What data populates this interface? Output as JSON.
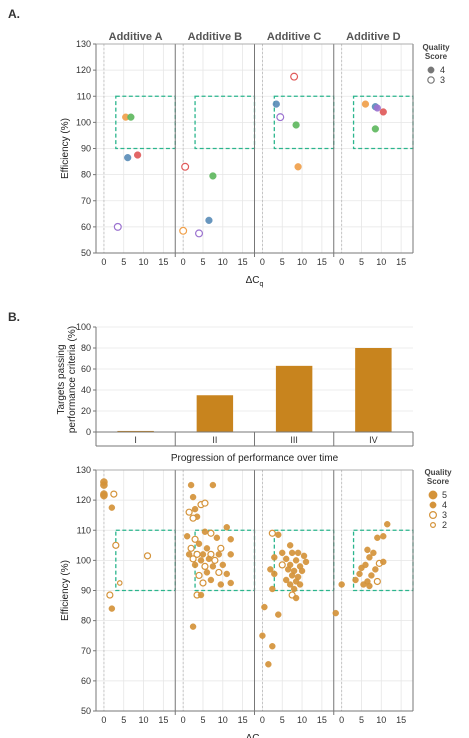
{
  "panel_a_label": "A.",
  "panel_b_label": "B.",
  "chart_data": [
    {
      "type": "scatter",
      "panel": "A",
      "facets": [
        "Additive A",
        "Additive B",
        "Additive C",
        "Additive D"
      ],
      "xlabel_main": "ΔC",
      "xlabel_sub": "q",
      "ylabel": "Efficiency (%)",
      "x_ticks": [
        0,
        5,
        10,
        15
      ],
      "xlim": [
        -2,
        18
      ],
      "y_ticks": [
        50,
        60,
        70,
        80,
        90,
        100,
        110,
        120,
        130
      ],
      "ylim": [
        50,
        130
      ],
      "target_box": {
        "x": [
          3,
          18
        ],
        "y": [
          90,
          110
        ]
      },
      "legend": {
        "title_line1": "Quality",
        "title_line2": "Score",
        "items": [
          {
            "label": "4",
            "filled": true
          },
          {
            "label": "3",
            "filled": false
          }
        ]
      },
      "points": [
        {
          "facet": 0,
          "x": 5.5,
          "y": 102,
          "q": 4,
          "color": "#F0A04B"
        },
        {
          "facet": 0,
          "x": 6.8,
          "y": 102,
          "q": 4,
          "color": "#5FB860"
        },
        {
          "facet": 0,
          "x": 6.0,
          "y": 86.5,
          "q": 4,
          "color": "#5B8DB8"
        },
        {
          "facet": 0,
          "x": 8.5,
          "y": 87.5,
          "q": 4,
          "color": "#E05A5A"
        },
        {
          "facet": 0,
          "x": 3.5,
          "y": 60,
          "q": 3,
          "color": "#9B72CF"
        },
        {
          "facet": 1,
          "x": 0.5,
          "y": 83,
          "q": 3,
          "color": "#E05A5A"
        },
        {
          "facet": 1,
          "x": 7.5,
          "y": 79.5,
          "q": 4,
          "color": "#5FB860"
        },
        {
          "facet": 1,
          "x": 6.5,
          "y": 62.5,
          "q": 4,
          "color": "#5B8DB8"
        },
        {
          "facet": 1,
          "x": 0.0,
          "y": 58.5,
          "q": 3,
          "color": "#F0A04B"
        },
        {
          "facet": 1,
          "x": 4.0,
          "y": 57.5,
          "q": 3,
          "color": "#9B72CF"
        },
        {
          "facet": 2,
          "x": 8.0,
          "y": 117.5,
          "q": 3,
          "color": "#E05A5A"
        },
        {
          "facet": 2,
          "x": 3.5,
          "y": 107,
          "q": 4,
          "color": "#5B8DB8"
        },
        {
          "facet": 2,
          "x": 4.5,
          "y": 102,
          "q": 3,
          "color": "#9B72CF"
        },
        {
          "facet": 2,
          "x": 8.5,
          "y": 99,
          "q": 4,
          "color": "#5FB860"
        },
        {
          "facet": 2,
          "x": 9.0,
          "y": 83,
          "q": 4,
          "color": "#F0A04B"
        },
        {
          "facet": 3,
          "x": 6.0,
          "y": 107,
          "q": 4,
          "color": "#F0A04B"
        },
        {
          "facet": 3,
          "x": 8.5,
          "y": 106,
          "q": 4,
          "color": "#5B8DB8"
        },
        {
          "facet": 3,
          "x": 9.0,
          "y": 105.5,
          "q": 4,
          "color": "#9B72CF"
        },
        {
          "facet": 3,
          "x": 10.5,
          "y": 104,
          "q": 4,
          "color": "#E05A5A"
        },
        {
          "facet": 3,
          "x": 8.5,
          "y": 97.5,
          "q": 4,
          "color": "#5FB860"
        }
      ]
    },
    {
      "type": "bar",
      "panel": "B-top",
      "categories": [
        "I",
        "II",
        "III",
        "IV"
      ],
      "values": [
        1,
        35,
        63,
        80
      ],
      "ylabel_line1": "Targets passing",
      "ylabel_line2": "performance criteria (%)",
      "xlabel": "Progression of performance over time",
      "y_ticks": [
        0,
        20,
        40,
        60,
        80,
        100
      ],
      "ylim": [
        0,
        100
      ],
      "bar_color": "#C8841E"
    },
    {
      "type": "scatter",
      "panel": "B-bottom",
      "facets": [
        "I",
        "II",
        "III",
        "IV"
      ],
      "xlabel_main": "ΔC",
      "xlabel_sub": "q",
      "ylabel": "Efficiency (%)",
      "x_ticks": [
        0,
        5,
        10,
        15
      ],
      "xlim": [
        -2,
        18
      ],
      "y_ticks": [
        50,
        60,
        70,
        80,
        90,
        100,
        110,
        120,
        130
      ],
      "ylim": [
        50,
        130
      ],
      "target_box": {
        "x": [
          3,
          18
        ],
        "y": [
          90,
          110
        ]
      },
      "point_color": "#D4933A",
      "legend": {
        "title_line1": "Quality",
        "title_line2": "Score",
        "items": [
          {
            "label": "5",
            "filled": true,
            "r": 4.2
          },
          {
            "label": "4",
            "filled": true,
            "r": 3.2
          },
          {
            "label": "3",
            "filled": false,
            "r": 3.4
          },
          {
            "label": "2",
            "filled": false,
            "r": 2.4
          }
        ]
      },
      "points": [
        {
          "facet": 0,
          "x": 0.0,
          "y": 126,
          "q": 5
        },
        {
          "facet": 0,
          "x": 0.0,
          "y": 125,
          "q": 5
        },
        {
          "facet": 0,
          "x": 0.0,
          "y": 122,
          "q": 5
        },
        {
          "facet": 0,
          "x": 0.0,
          "y": 121.5,
          "q": 5
        },
        {
          "facet": 0,
          "x": 2.5,
          "y": 122,
          "q": 3
        },
        {
          "facet": 0,
          "x": 2.0,
          "y": 117.5,
          "q": 4
        },
        {
          "facet": 0,
          "x": 3.0,
          "y": 105,
          "q": 3
        },
        {
          "facet": 0,
          "x": 11.0,
          "y": 101.5,
          "q": 3
        },
        {
          "facet": 0,
          "x": 4.0,
          "y": 92.5,
          "q": 2
        },
        {
          "facet": 0,
          "x": 1.5,
          "y": 88.5,
          "q": 3
        },
        {
          "facet": 0,
          "x": 2.0,
          "y": 84,
          "q": 4
        },
        {
          "facet": 1,
          "x": 2.0,
          "y": 125,
          "q": 4
        },
        {
          "facet": 1,
          "x": 7.5,
          "y": 125,
          "q": 4
        },
        {
          "facet": 1,
          "x": 2.5,
          "y": 121,
          "q": 4
        },
        {
          "facet": 1,
          "x": 4.5,
          "y": 118.5,
          "q": 3
        },
        {
          "facet": 1,
          "x": 5.5,
          "y": 119,
          "q": 3
        },
        {
          "facet": 1,
          "x": 3.0,
          "y": 117,
          "q": 4
        },
        {
          "facet": 1,
          "x": 1.5,
          "y": 116,
          "q": 3
        },
        {
          "facet": 1,
          "x": 3.5,
          "y": 114.5,
          "q": 4
        },
        {
          "facet": 1,
          "x": 2.5,
          "y": 114,
          "q": 3
        },
        {
          "facet": 1,
          "x": 11.0,
          "y": 111,
          "q": 4
        },
        {
          "facet": 1,
          "x": 5.5,
          "y": 109.5,
          "q": 4
        },
        {
          "facet": 1,
          "x": 7.0,
          "y": 109,
          "q": 3
        },
        {
          "facet": 1,
          "x": 1.0,
          "y": 108,
          "q": 4
        },
        {
          "facet": 1,
          "x": 3.0,
          "y": 107,
          "q": 3
        },
        {
          "facet": 1,
          "x": 8.5,
          "y": 107.5,
          "q": 4
        },
        {
          "facet": 1,
          "x": 12.0,
          "y": 107,
          "q": 4
        },
        {
          "facet": 1,
          "x": 4.0,
          "y": 105.5,
          "q": 4
        },
        {
          "facet": 1,
          "x": 2.0,
          "y": 104,
          "q": 3
        },
        {
          "facet": 1,
          "x": 6.0,
          "y": 104,
          "q": 4
        },
        {
          "facet": 1,
          "x": 9.5,
          "y": 104,
          "q": 3
        },
        {
          "facet": 1,
          "x": 1.5,
          "y": 102,
          "q": 4
        },
        {
          "facet": 1,
          "x": 3.5,
          "y": 102,
          "q": 3
        },
        {
          "facet": 1,
          "x": 5.0,
          "y": 102,
          "q": 4
        },
        {
          "facet": 1,
          "x": 7.0,
          "y": 102,
          "q": 3
        },
        {
          "facet": 1,
          "x": 9.0,
          "y": 102,
          "q": 4
        },
        {
          "facet": 1,
          "x": 12.0,
          "y": 102,
          "q": 4
        },
        {
          "facet": 1,
          "x": 2.5,
          "y": 100.5,
          "q": 3
        },
        {
          "facet": 1,
          "x": 4.5,
          "y": 100,
          "q": 4
        },
        {
          "facet": 1,
          "x": 6.5,
          "y": 100.5,
          "q": 4
        },
        {
          "facet": 1,
          "x": 8.0,
          "y": 100,
          "q": 3
        },
        {
          "facet": 1,
          "x": 3.0,
          "y": 98.5,
          "q": 4
        },
        {
          "facet": 1,
          "x": 5.5,
          "y": 98,
          "q": 3
        },
        {
          "facet": 1,
          "x": 7.5,
          "y": 98,
          "q": 4
        },
        {
          "facet": 1,
          "x": 10.0,
          "y": 98.5,
          "q": 4
        },
        {
          "facet": 1,
          "x": 6.0,
          "y": 96,
          "q": 4
        },
        {
          "facet": 1,
          "x": 9.0,
          "y": 96,
          "q": 3
        },
        {
          "facet": 1,
          "x": 4.0,
          "y": 95,
          "q": 3
        },
        {
          "facet": 1,
          "x": 11.0,
          "y": 95.5,
          "q": 4
        },
        {
          "facet": 1,
          "x": 7.0,
          "y": 93.5,
          "q": 4
        },
        {
          "facet": 1,
          "x": 5.0,
          "y": 92.5,
          "q": 3
        },
        {
          "facet": 1,
          "x": 9.5,
          "y": 92,
          "q": 4
        },
        {
          "facet": 1,
          "x": 12.0,
          "y": 92.5,
          "q": 4
        },
        {
          "facet": 1,
          "x": 3.5,
          "y": 88.5,
          "q": 3
        },
        {
          "facet": 1,
          "x": 4.5,
          "y": 88.5,
          "q": 4
        },
        {
          "facet": 1,
          "x": 2.5,
          "y": 78,
          "q": 4
        },
        {
          "facet": 2,
          "x": 2.5,
          "y": 109,
          "q": 3
        },
        {
          "facet": 2,
          "x": 4.0,
          "y": 108.5,
          "q": 4
        },
        {
          "facet": 2,
          "x": 7.0,
          "y": 105,
          "q": 4
        },
        {
          "facet": 2,
          "x": 3.0,
          "y": 101,
          "q": 4
        },
        {
          "facet": 2,
          "x": 5.0,
          "y": 102.5,
          "q": 4
        },
        {
          "facet": 2,
          "x": 7.5,
          "y": 102.5,
          "q": 4
        },
        {
          "facet": 2,
          "x": 9.0,
          "y": 102.5,
          "q": 4
        },
        {
          "facet": 2,
          "x": 10.5,
          "y": 101.5,
          "q": 4
        },
        {
          "facet": 2,
          "x": 6.0,
          "y": 100.5,
          "q": 4
        },
        {
          "facet": 2,
          "x": 8.5,
          "y": 100,
          "q": 4
        },
        {
          "facet": 2,
          "x": 11.0,
          "y": 99.5,
          "q": 4
        },
        {
          "facet": 2,
          "x": 5.0,
          "y": 98.5,
          "q": 3
        },
        {
          "facet": 2,
          "x": 7.0,
          "y": 98.5,
          "q": 4
        },
        {
          "facet": 2,
          "x": 9.5,
          "y": 98,
          "q": 4
        },
        {
          "facet": 2,
          "x": 2.0,
          "y": 97,
          "q": 4
        },
        {
          "facet": 2,
          "x": 6.5,
          "y": 97,
          "q": 4
        },
        {
          "facet": 2,
          "x": 8.0,
          "y": 96.5,
          "q": 4
        },
        {
          "facet": 2,
          "x": 10.0,
          "y": 96.5,
          "q": 4
        },
        {
          "facet": 2,
          "x": 3.0,
          "y": 95.5,
          "q": 4
        },
        {
          "facet": 2,
          "x": 7.5,
          "y": 95,
          "q": 4
        },
        {
          "facet": 2,
          "x": 9.0,
          "y": 94.5,
          "q": 4
        },
        {
          "facet": 2,
          "x": 6.0,
          "y": 93.5,
          "q": 4
        },
        {
          "facet": 2,
          "x": 8.5,
          "y": 93,
          "q": 4
        },
        {
          "facet": 2,
          "x": 7.0,
          "y": 92,
          "q": 4
        },
        {
          "facet": 2,
          "x": 9.5,
          "y": 92,
          "q": 4
        },
        {
          "facet": 2,
          "x": 2.5,
          "y": 90.5,
          "q": 4
        },
        {
          "facet": 2,
          "x": 8.0,
          "y": 90.5,
          "q": 4
        },
        {
          "facet": 2,
          "x": 7.5,
          "y": 88.5,
          "q": 3
        },
        {
          "facet": 2,
          "x": 8.5,
          "y": 87.5,
          "q": 4
        },
        {
          "facet": 2,
          "x": 0.5,
          "y": 84.5,
          "q": 4
        },
        {
          "facet": 2,
          "x": 4.0,
          "y": 82,
          "q": 4
        },
        {
          "facet": 2,
          "x": 0.0,
          "y": 75,
          "q": 4
        },
        {
          "facet": 2,
          "x": 2.5,
          "y": 71.5,
          "q": 4
        },
        {
          "facet": 2,
          "x": 1.5,
          "y": 65.5,
          "q": 4
        },
        {
          "facet": 3,
          "x": 11.5,
          "y": 112,
          "q": 4
        },
        {
          "facet": 3,
          "x": 9.0,
          "y": 107.5,
          "q": 4
        },
        {
          "facet": 3,
          "x": 10.5,
          "y": 108,
          "q": 4
        },
        {
          "facet": 3,
          "x": 6.5,
          "y": 103.5,
          "q": 4
        },
        {
          "facet": 3,
          "x": 8.0,
          "y": 102.5,
          "q": 4
        },
        {
          "facet": 3,
          "x": 7.0,
          "y": 101,
          "q": 4
        },
        {
          "facet": 3,
          "x": 9.5,
          "y": 99,
          "q": 3
        },
        {
          "facet": 3,
          "x": 6.0,
          "y": 98.5,
          "q": 4
        },
        {
          "facet": 3,
          "x": 10.5,
          "y": 99.5,
          "q": 4
        },
        {
          "facet": 3,
          "x": 8.5,
          "y": 97,
          "q": 4
        },
        {
          "facet": 3,
          "x": 5.0,
          "y": 97.5,
          "q": 4
        },
        {
          "facet": 3,
          "x": 4.5,
          "y": 95.5,
          "q": 4
        },
        {
          "facet": 3,
          "x": 7.5,
          "y": 95,
          "q": 4
        },
        {
          "facet": 3,
          "x": 3.5,
          "y": 93.5,
          "q": 4
        },
        {
          "facet": 3,
          "x": 6.5,
          "y": 93,
          "q": 4
        },
        {
          "facet": 3,
          "x": 9.0,
          "y": 93,
          "q": 3
        },
        {
          "facet": 3,
          "x": 5.5,
          "y": 92,
          "q": 4
        },
        {
          "facet": 3,
          "x": 7.0,
          "y": 91.5,
          "q": 4
        },
        {
          "facet": 3,
          "x": 0.0,
          "y": 92,
          "q": 4
        },
        {
          "facet": 3,
          "x": -1.5,
          "y": 82.5,
          "q": 4
        }
      ]
    }
  ]
}
